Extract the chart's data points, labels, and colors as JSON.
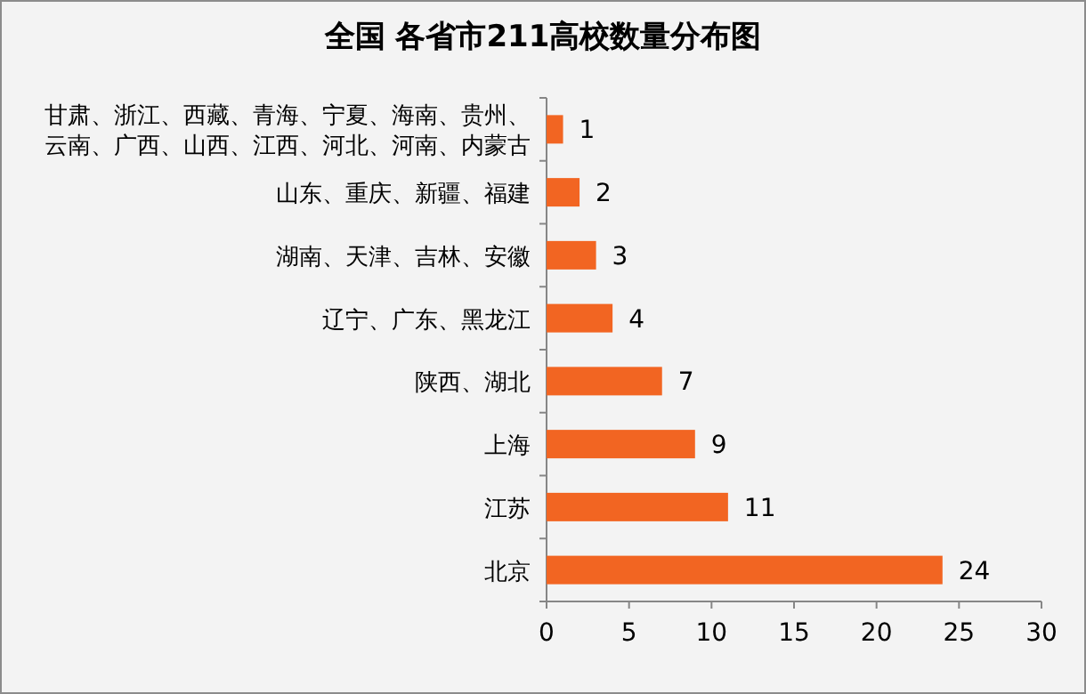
{
  "chart_data": {
    "type": "bar",
    "orientation": "horizontal",
    "title": "全国 各省市211高校数量分布图",
    "categories": [
      "甘肃、浙江、西藏、青海、宁夏、海南、贵州、云南、广西、山西、江西、河北、河南、内蒙古",
      "山东、重庆、新疆、福建",
      "湖南、天津、吉林、安徽",
      "辽宁、广东、黑龙江",
      "陕西、湖北",
      "上海",
      "江苏",
      "北京"
    ],
    "values": [
      1,
      2,
      3,
      4,
      7,
      9,
      11,
      24
    ],
    "color": "#f26522",
    "xlim": [
      0,
      30
    ],
    "xticks": [
      0,
      5,
      10,
      15,
      20,
      25,
      30
    ],
    "data_labels": true
  }
}
